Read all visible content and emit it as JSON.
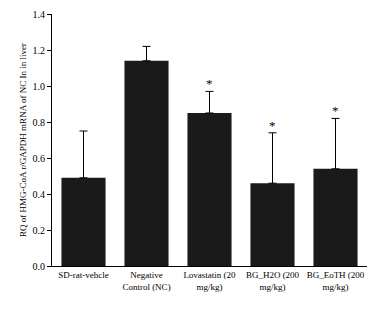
{
  "chart_data": {
    "type": "bar",
    "y_label": "RQ of HMG-CoA r/GAPDH mRNA of NC In in liver",
    "categories": [
      "SD-rat-vehcle",
      "Negative Control (NC)",
      "Lovastatin (20 mg/kg)",
      "BG_H2O (200 mg/kg)",
      "BG_EoTH (200 mg/kg)"
    ],
    "values": [
      0.49,
      1.14,
      0.85,
      0.46,
      0.54
    ],
    "error": [
      0.26,
      0.08,
      0.12,
      0.28,
      0.28
    ],
    "color": "#1a1a1a",
    "ylim": [
      0,
      1.4
    ],
    "yticks": [
      {
        "value": 0,
        "label": "0.0"
      },
      0.2,
      0.4,
      0.6,
      0.8,
      {
        "value": 1,
        "label": "1.0"
      },
      1.2,
      1.4
    ],
    "grid": false,
    "annotations": [
      {
        "category": "Lovastatin (20 mg/kg)",
        "text": "*"
      },
      {
        "category": "BG_H2O (200 mg/kg)",
        "text": "*"
      },
      {
        "category": "BG_EoTH (200 mg/kg)",
        "text": "*"
      }
    ]
  }
}
